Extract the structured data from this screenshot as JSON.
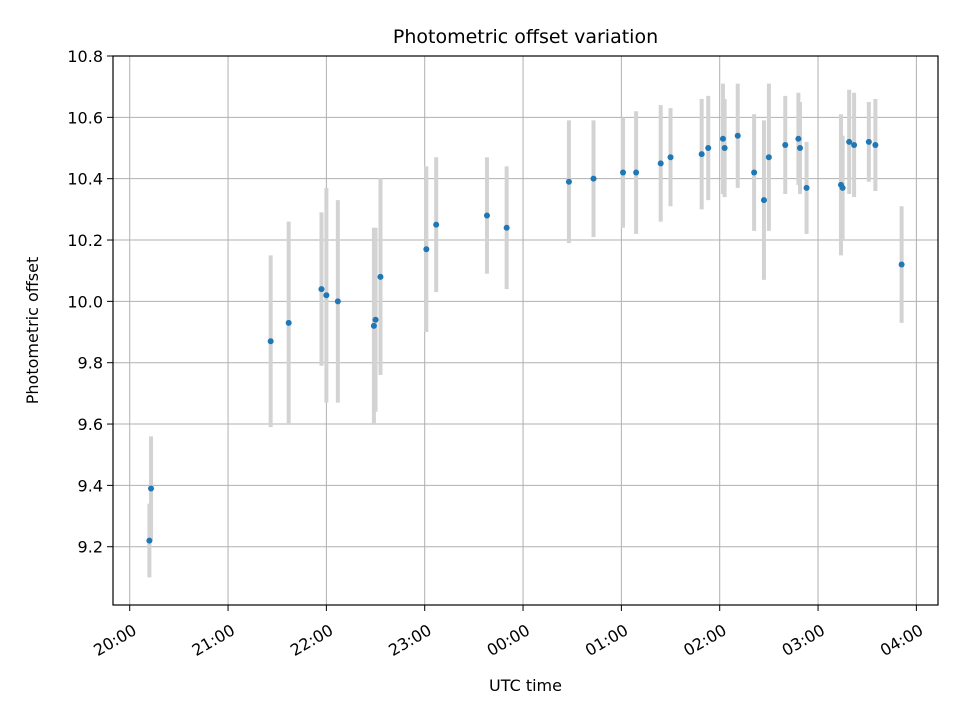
{
  "chart_data": {
    "type": "scatter",
    "title": "Photometric offset variation",
    "xlabel": "UTC time",
    "ylabel": "Photometric offset",
    "x_ticks": [
      "20:00",
      "21:00",
      "22:00",
      "23:00",
      "00:00",
      "01:00",
      "02:00",
      "03:00",
      "04:00"
    ],
    "x_tick_hours": [
      20,
      21,
      22,
      23,
      24,
      25,
      26,
      27,
      28
    ],
    "xlim_hours": [
      19.83,
      28.22
    ],
    "y_ticks": [
      "9.2",
      "9.4",
      "9.6",
      "9.8",
      "10.0",
      "10.2",
      "10.4",
      "10.6",
      "10.8"
    ],
    "y_tick_values": [
      9.2,
      9.4,
      9.6,
      9.8,
      10.0,
      10.2,
      10.4,
      10.6,
      10.8
    ],
    "ylim": [
      9.01,
      10.8
    ],
    "grid": true,
    "colors": {
      "point": "#1f77b4",
      "errorbar": "#d3d3d3",
      "grid": "#b0b0b0"
    },
    "points": [
      {
        "t": "20:12",
        "y": 9.22,
        "err": 0.12
      },
      {
        "t": "20:13",
        "y": 9.39,
        "err": 0.17
      },
      {
        "t": "21:26",
        "y": 9.87,
        "err": 0.28
      },
      {
        "t": "21:37",
        "y": 9.93,
        "err": 0.33
      },
      {
        "t": "21:57",
        "y": 10.04,
        "err": 0.25
      },
      {
        "t": "22:00",
        "y": 10.02,
        "err": 0.35
      },
      {
        "t": "22:07",
        "y": 10.0,
        "err": 0.33
      },
      {
        "t": "22:29",
        "y": 9.92,
        "err": 0.32
      },
      {
        "t": "22:30",
        "y": 9.94,
        "err": 0.3
      },
      {
        "t": "22:33",
        "y": 10.08,
        "err": 0.32
      },
      {
        "t": "23:01",
        "y": 10.17,
        "err": 0.27
      },
      {
        "t": "23:07",
        "y": 10.25,
        "err": 0.22
      },
      {
        "t": "23:38",
        "y": 10.28,
        "err": 0.19
      },
      {
        "t": "23:50",
        "y": 10.24,
        "err": 0.2
      },
      {
        "t": "00:28",
        "y": 10.39,
        "err": 0.2
      },
      {
        "t": "00:43",
        "y": 10.4,
        "err": 0.19
      },
      {
        "t": "01:01",
        "y": 10.42,
        "err": 0.18
      },
      {
        "t": "01:09",
        "y": 10.42,
        "err": 0.2
      },
      {
        "t": "01:24",
        "y": 10.45,
        "err": 0.19
      },
      {
        "t": "01:30",
        "y": 10.47,
        "err": 0.16
      },
      {
        "t": "01:49",
        "y": 10.48,
        "err": 0.18
      },
      {
        "t": "01:53",
        "y": 10.5,
        "err": 0.17
      },
      {
        "t": "02:02",
        "y": 10.53,
        "err": 0.18
      },
      {
        "t": "02:03",
        "y": 10.5,
        "err": 0.16
      },
      {
        "t": "02:11",
        "y": 10.54,
        "err": 0.17
      },
      {
        "t": "02:21",
        "y": 10.42,
        "err": 0.19
      },
      {
        "t": "02:27",
        "y": 10.33,
        "err": 0.26
      },
      {
        "t": "02:30",
        "y": 10.47,
        "err": 0.24
      },
      {
        "t": "02:40",
        "y": 10.51,
        "err": 0.16
      },
      {
        "t": "02:48",
        "y": 10.53,
        "err": 0.15
      },
      {
        "t": "02:49",
        "y": 10.5,
        "err": 0.15
      },
      {
        "t": "02:53",
        "y": 10.37,
        "err": 0.15
      },
      {
        "t": "03:14",
        "y": 10.38,
        "err": 0.23
      },
      {
        "t": "03:15",
        "y": 10.37,
        "err": 0.17
      },
      {
        "t": "03:19",
        "y": 10.52,
        "err": 0.17
      },
      {
        "t": "03:22",
        "y": 10.51,
        "err": 0.17
      },
      {
        "t": "03:31",
        "y": 10.52,
        "err": 0.13
      },
      {
        "t": "03:35",
        "y": 10.51,
        "err": 0.15
      },
      {
        "t": "03:51",
        "y": 10.12,
        "err": 0.19
      }
    ]
  }
}
